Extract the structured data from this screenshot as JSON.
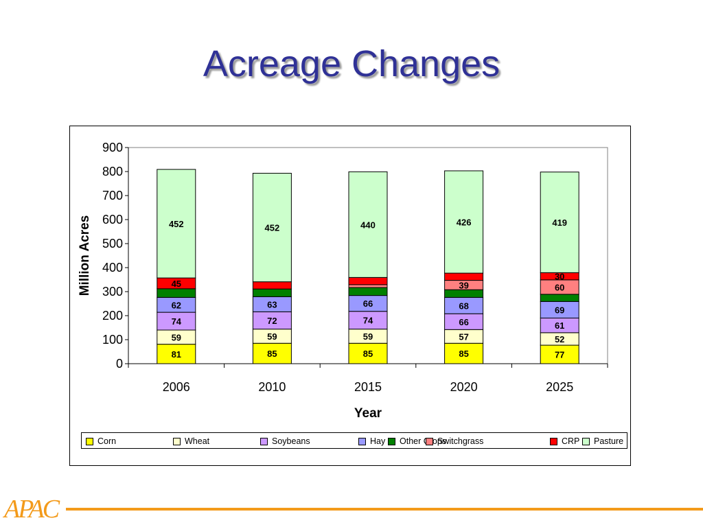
{
  "slide": {
    "title": "Acreage Changes"
  },
  "footer": {
    "logo_text": "APAC",
    "accent_color": "#f39a1a"
  },
  "chart_data": {
    "type": "bar",
    "stacked": true,
    "title": "",
    "xlabel": "Year",
    "ylabel": "Million Acres",
    "ylim": [
      0,
      900
    ],
    "yticks": [
      0,
      100,
      200,
      300,
      400,
      500,
      600,
      700,
      800,
      900
    ],
    "categories": [
      "2006",
      "2010",
      "2015",
      "2020",
      "2025"
    ],
    "grid": false,
    "legend_position": "bottom",
    "series": [
      {
        "name": "Corn",
        "color": "#ffff00",
        "values": [
          81,
          85,
          85,
          85,
          77
        ],
        "labels": [
          "81",
          "85",
          "85",
          "85",
          "77"
        ]
      },
      {
        "name": "Wheat",
        "color": "#ffffcc",
        "values": [
          59,
          59,
          59,
          57,
          52
        ],
        "labels": [
          "59",
          "59",
          "59",
          "57",
          "52"
        ]
      },
      {
        "name": "Soybeans",
        "color": "#cc99ff",
        "values": [
          74,
          72,
          74,
          66,
          61
        ],
        "labels": [
          "74",
          "72",
          "74",
          "66",
          "61"
        ]
      },
      {
        "name": "Hay",
        "color": "#9999ff",
        "values": [
          62,
          63,
          66,
          68,
          69
        ],
        "labels": [
          "62",
          "63",
          "66",
          "68",
          "69"
        ]
      },
      {
        "name": "Other Crops",
        "color": "#008000",
        "values": [
          36,
          32,
          33,
          32,
          30
        ],
        "labels": [
          "",
          "",
          "",
          "",
          ""
        ]
      },
      {
        "name": "Switchgrass",
        "color": "#ff8080",
        "values": [
          0,
          0,
          12,
          39,
          60
        ],
        "labels": [
          "",
          "",
          "",
          "39",
          "60"
        ]
      },
      {
        "name": "CRP",
        "color": "#ff0000",
        "values": [
          45,
          30,
          30,
          30,
          30
        ],
        "labels": [
          "45",
          "",
          "",
          "",
          "30"
        ]
      },
      {
        "name": "Pasture",
        "color": "#ccffcc",
        "values": [
          452,
          452,
          440,
          426,
          419
        ],
        "labels": [
          "452",
          "452",
          "440",
          "426",
          "419"
        ]
      }
    ]
  }
}
